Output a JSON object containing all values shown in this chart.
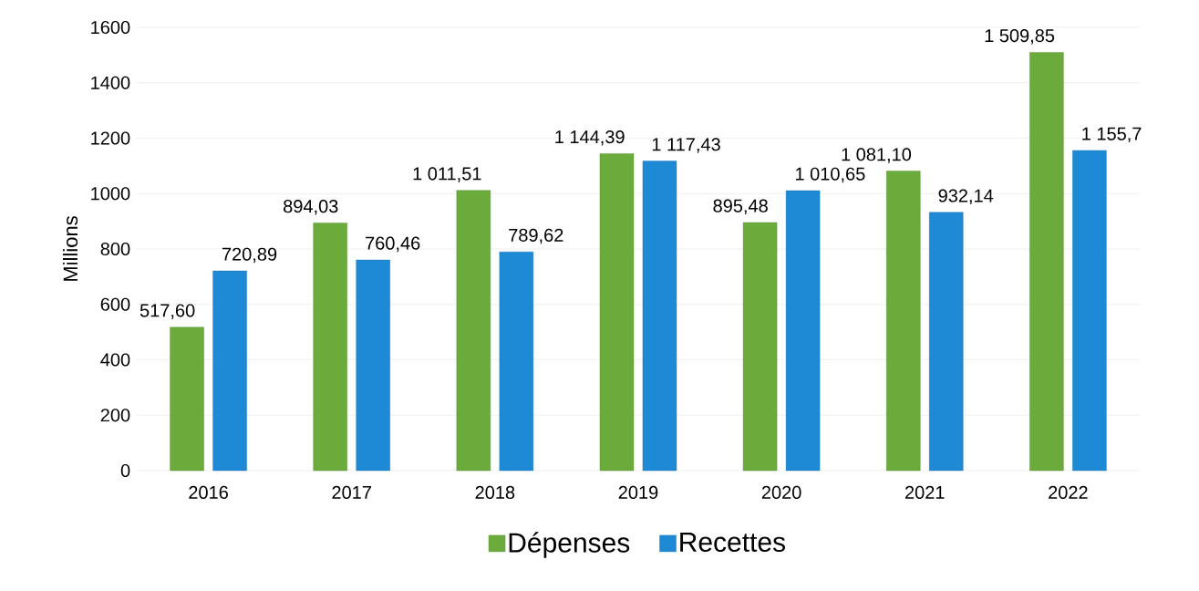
{
  "chart_data": {
    "type": "bar",
    "ylabel": "Millions",
    "categories": [
      "2016",
      "2017",
      "2018",
      "2019",
      "2020",
      "2021",
      "2022"
    ],
    "series": [
      {
        "name": "Dépenses",
        "color": "#6aab3c",
        "values": [
          517.6,
          894.03,
          1011.51,
          1144.39,
          895.48,
          1081.1,
          1509.85
        ],
        "value_labels": [
          "517,60",
          "894,03",
          "1 011,51",
          "1 144,39",
          "895,48",
          "1 081,10",
          "1 509,85"
        ]
      },
      {
        "name": "Recettes",
        "color": "#1e8ad6",
        "values": [
          720.89,
          760.46,
          789.62,
          1117.43,
          1010.65,
          932.14,
          1155.7
        ],
        "value_labels": [
          "720,89",
          "760,46",
          "789,62",
          "1 117,43",
          "1 010,65",
          "932,14",
          "1 155,7"
        ]
      }
    ],
    "ylim": [
      0,
      1600
    ],
    "yticks": [
      0,
      200,
      400,
      600,
      800,
      1000,
      1200,
      1400,
      1600
    ],
    "grid": "y",
    "legend": "bottom"
  }
}
